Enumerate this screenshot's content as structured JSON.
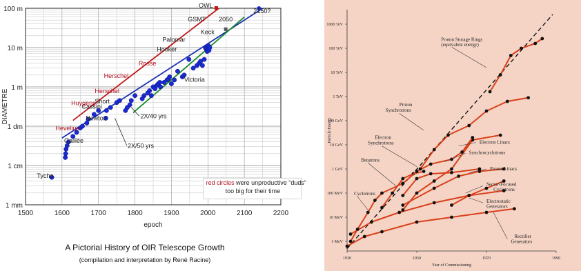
{
  "chart_data": [
    {
      "type": "scatter",
      "title": "",
      "xlabel": "epoch",
      "ylabel": "DIAMETRE",
      "xlim": [
        1500,
        2200
      ],
      "ylim_log_m": [
        0.001,
        100
      ],
      "y_scale": "log",
      "grid": true,
      "x_ticks": [
        "1500",
        "1600",
        "1700",
        "1800",
        "1900",
        "2000",
        "2100",
        "2200"
      ],
      "y_ticks": [
        {
          "v": 100,
          "label": "100 m"
        },
        {
          "v": 10,
          "label": "10 m"
        },
        {
          "v": 1,
          "label": "1 m"
        },
        {
          "v": 0.1,
          "label": "1 dm"
        },
        {
          "v": 0.01,
          "label": "1 cm"
        },
        {
          "v": 0.001,
          "label": "1 mm"
        }
      ],
      "points": [
        {
          "x": 1572,
          "y": 0.005
        },
        {
          "x": 1609,
          "y": 0.016
        },
        {
          "x": 1610,
          "y": 0.02
        },
        {
          "x": 1611,
          "y": 0.026
        },
        {
          "x": 1614,
          "y": 0.032
        },
        {
          "x": 1618,
          "y": 0.04
        },
        {
          "x": 1630,
          "y": 0.055
        },
        {
          "x": 1640,
          "y": 0.07
        },
        {
          "x": 1650,
          "y": 0.09
        },
        {
          "x": 1656,
          "y": 0.1
        },
        {
          "x": 1668,
          "y": 0.12
        },
        {
          "x": 1672,
          "y": 0.15
        },
        {
          "x": 1688,
          "y": 0.2
        },
        {
          "x": 1700,
          "y": 0.25
        },
        {
          "x": 1720,
          "y": 0.16
        },
        {
          "x": 1722,
          "y": 0.25
        },
        {
          "x": 1733,
          "y": 0.3
        },
        {
          "x": 1750,
          "y": 0.4
        },
        {
          "x": 1758,
          "y": 0.45
        },
        {
          "x": 1774,
          "y": 0.25
        },
        {
          "x": 1779,
          "y": 0.3
        },
        {
          "x": 1786,
          "y": 0.35
        },
        {
          "x": 1790,
          "y": 0.45
        },
        {
          "x": 1800,
          "y": 0.6
        },
        {
          "x": 1820,
          "y": 0.5
        },
        {
          "x": 1825,
          "y": 0.6
        },
        {
          "x": 1835,
          "y": 0.7
        },
        {
          "x": 1840,
          "y": 0.8
        },
        {
          "x": 1845,
          "y": 0.6
        },
        {
          "x": 1850,
          "y": 1.0
        },
        {
          "x": 1855,
          "y": 0.9
        },
        {
          "x": 1860,
          "y": 1.1
        },
        {
          "x": 1864,
          "y": 1.2
        },
        {
          "x": 1868,
          "y": 1.3
        },
        {
          "x": 1870,
          "y": 1.0
        },
        {
          "x": 1880,
          "y": 1.3
        },
        {
          "x": 1888,
          "y": 1.5
        },
        {
          "x": 1892,
          "y": 1.6
        },
        {
          "x": 1895,
          "y": 1.8
        },
        {
          "x": 1900,
          "y": 1.2
        },
        {
          "x": 1908,
          "y": 1.5
        },
        {
          "x": 1917,
          "y": 2.5
        },
        {
          "x": 1930,
          "y": 1.8
        },
        {
          "x": 1935,
          "y": 2.0
        },
        {
          "x": 1948,
          "y": 5.0
        },
        {
          "x": 1960,
          "y": 3.0
        },
        {
          "x": 1970,
          "y": 3.5
        },
        {
          "x": 1976,
          "y": 4.0
        },
        {
          "x": 1980,
          "y": 4.5
        },
        {
          "x": 1985,
          "y": 3.5
        },
        {
          "x": 1990,
          "y": 5.0
        },
        {
          "x": 1993,
          "y": 10
        },
        {
          "x": 1996,
          "y": 9
        },
        {
          "x": 1998,
          "y": 8
        },
        {
          "x": 1999,
          "y": 8.2
        },
        {
          "x": 2000,
          "y": 10
        },
        {
          "x": 2001,
          "y": 9.2
        },
        {
          "x": 2002,
          "y": 11
        },
        {
          "x": 2003,
          "y": 8.5
        },
        {
          "x": 2005,
          "y": 10
        }
      ],
      "trend_lines": [
        {
          "label": "2X/50 yrs",
          "color": "#1a2fb0",
          "from": [
            1600,
            0.05
          ],
          "to": [
            2150,
            100
          ]
        },
        {
          "label": "",
          "color": "#c01818",
          "from": [
            1630,
            0.14
          ],
          "to": [
            2030,
            100
          ]
        },
        {
          "label": "2X/40 yrs",
          "color": "#158a28",
          "from": [
            1795,
            0.22
          ],
          "to": [
            2100,
            60
          ]
        }
      ],
      "labels": [
        {
          "text": "Tycho",
          "x": 1531,
          "y": 0.0048,
          "red": false
        },
        {
          "text": "Galilée",
          "x": 1606,
          "y": 0.038,
          "red": false
        },
        {
          "text": "Hevelius",
          "x": 1582,
          "y": 0.078,
          "red": true
        },
        {
          "text": "Newton",
          "x": 1665,
          "y": 0.14,
          "red": false
        },
        {
          "text": "Cassini",
          "x": 1654,
          "y": 0.28,
          "red": false
        },
        {
          "text": "Short",
          "x": 1690,
          "y": 0.38,
          "red": false
        },
        {
          "text": "Huygens",
          "x": 1625,
          "y": 0.34,
          "red": true
        },
        {
          "text": "Herschel",
          "x": 1690,
          "y": 0.7,
          "red": true
        },
        {
          "text": "Herschel",
          "x": 1715,
          "y": 1.7,
          "red": true
        },
        {
          "text": "Rosse",
          "x": 1810,
          "y": 3.5,
          "red": true
        },
        {
          "text": "Hooker",
          "x": 1860,
          "y": 8,
          "red": false
        },
        {
          "text": "Palomar",
          "x": 1875,
          "y": 14,
          "red": false
        },
        {
          "text": "Victoria",
          "x": 1935,
          "y": 1.35,
          "red": false
        },
        {
          "text": "Keck",
          "x": 1980,
          "y": 22,
          "red": false
        },
        {
          "text": "OWL",
          "x": 1975,
          "y": 105,
          "red": false
        },
        {
          "text": "GSMT",
          "x": 1945,
          "y": 46,
          "red": false
        },
        {
          "text": "2050",
          "x": 2030,
          "y": 46,
          "red": false
        },
        {
          "text": "2150?",
          "x": 2125,
          "y": 75,
          "red": false
        }
      ],
      "annotations": [
        {
          "text": "2X/40 yrs",
          "x": 1815,
          "y": 0.16
        },
        {
          "text": "2X/50 yrs",
          "x": 1780,
          "y": 0.028
        }
      ],
      "legend_note": {
        "line1_red": "red circles",
        "line1_rest": " were unproductive \"duds\"",
        "line2": "too big for their time"
      }
    },
    {
      "type": "line",
      "xlabel": "Year of Commissioning",
      "ylabel": "Particle Energy",
      "xlim": [
        1930,
        1990
      ],
      "x_ticks": [
        "1930",
        "1950",
        "1970",
        "1990"
      ],
      "y_scale": "log",
      "y_ticks": [
        "1000 TeV",
        "100 TeV",
        "10 TeV",
        "1 TeV",
        "100 GeV",
        "10 GeV",
        "1 GeV",
        "100 MeV",
        "10 MeV",
        "1 MeV"
      ],
      "y_tick_exponents": [
        9,
        8,
        7,
        6,
        5,
        4,
        3,
        2,
        1,
        0
      ],
      "reference_line": {
        "from": [
          1930,
          -0.3
        ],
        "to": [
          1989,
          9.4
        ]
      },
      "curves": [
        {
          "name": "Rectifier Generators",
          "points": [
            [
              1930,
              -0.2
            ],
            [
              1935,
              0.2
            ],
            [
              1940,
              0.4
            ],
            [
              1950,
              0.8
            ],
            [
              1960,
              1.0
            ],
            [
              1970,
              1.2
            ],
            [
              1978,
              1.35
            ]
          ]
        },
        {
          "name": "Electrostatic Generators",
          "points": [
            [
              1931,
              0.3
            ],
            [
              1937,
              0.8
            ],
            [
              1945,
              1.2
            ],
            [
              1955,
              1.6
            ],
            [
              1965,
              1.9
            ],
            [
              1975,
              2.1
            ]
          ]
        },
        {
          "name": "Cyclotrons",
          "points": [
            [
              1931,
              0.0
            ],
            [
              1933,
              0.5
            ],
            [
              1936,
              1.2
            ],
            [
              1938,
              1.7
            ],
            [
              1940,
              2.0
            ],
            [
              1946,
              2.4
            ]
          ]
        },
        {
          "name": "Betatrons",
          "points": [
            [
              1940,
              1.4
            ],
            [
              1943,
              2.0
            ],
            [
              1946,
              2.6
            ],
            [
              1949,
              2.8
            ],
            [
              1952,
              2.9
            ]
          ]
        },
        {
          "name": "Synchrocyclotrons",
          "points": [
            [
              1946,
              1.9
            ],
            [
              1950,
              2.6
            ],
            [
              1954,
              2.8
            ],
            [
              1960,
              2.85
            ],
            [
              1968,
              3.0
            ]
          ]
        },
        {
          "name": "Sector-Focused Cyclotrons",
          "points": [
            [
              1960,
              1.5
            ],
            [
              1965,
              1.9
            ],
            [
              1970,
              2.2
            ],
            [
              1975,
              2.5
            ]
          ]
        },
        {
          "name": "Proton Linacs",
          "points": [
            [
              1946,
              1.5
            ],
            [
              1955,
              2.2
            ],
            [
              1962,
              2.7
            ],
            [
              1968,
              2.9
            ],
            [
              1975,
              3.0
            ]
          ]
        },
        {
          "name": "Electron Linacs",
          "points": [
            [
              1946,
              1.3
            ],
            [
              1950,
              2.0
            ],
            [
              1955,
              2.5
            ],
            [
              1960,
              3.0
            ],
            [
              1966,
              4.2
            ],
            [
              1974,
              4.4
            ]
          ]
        },
        {
          "name": "Electron Synchrotrons",
          "points": [
            [
              1946,
              2.4
            ],
            [
              1950,
              2.9
            ],
            [
              1954,
              3.2
            ],
            [
              1960,
              3.4
            ],
            [
              1963,
              3.7
            ],
            [
              1966,
              4.3
            ]
          ]
        },
        {
          "name": "Proton Synchrotrons",
          "points": [
            [
              1951,
              3.0
            ],
            [
              1955,
              3.8
            ],
            [
              1959,
              4.4
            ],
            [
              1965,
              4.8
            ],
            [
              1970,
              5.4
            ],
            [
              1976,
              5.8
            ],
            [
              1982,
              5.95
            ]
          ]
        },
        {
          "name": "Proton Storage Rings (equivalent energy)",
          "points": [
            [
              1971,
              6.2
            ],
            [
              1974,
              6.9
            ],
            [
              1977,
              7.7
            ],
            [
              1980,
              8.0
            ],
            [
              1984,
              8.2
            ],
            [
              1986,
              8.4
            ]
          ]
        }
      ],
      "labels": [
        {
          "text": "Proton Storage Rings",
          "x": 1957,
          "y": 8.3
        },
        {
          "text": "(equivalent energy)",
          "x": 1957,
          "y": 8.08
        },
        {
          "text": "Proton",
          "x": 1945,
          "y": 5.6
        },
        {
          "text": "Synchrotrons",
          "x": 1941,
          "y": 5.37
        },
        {
          "text": "Electron",
          "x": 1938,
          "y": 4.25
        },
        {
          "text": "Synchrotrons",
          "x": 1936,
          "y": 4.02
        },
        {
          "text": "Electron Linacs",
          "x": 1968,
          "y": 4.05
        },
        {
          "text": "Synchrocyclotrons",
          "x": 1965,
          "y": 3.62
        },
        {
          "text": "Betatrons",
          "x": 1934,
          "y": 3.3
        },
        {
          "text": "Proton Linacs",
          "x": 1971,
          "y": 2.95
        },
        {
          "text": "Sector-Focused",
          "x": 1970,
          "y": 2.3
        },
        {
          "text": "Cyclotrons",
          "x": 1972,
          "y": 2.08
        },
        {
          "text": "Cyclotrons",
          "x": 1932,
          "y": 1.92
        },
        {
          "text": "Electrostatic",
          "x": 1970,
          "y": 1.6
        },
        {
          "text": "Generators",
          "x": 1970,
          "y": 1.38
        },
        {
          "text": "Rectifier",
          "x": 1978,
          "y": 0.15
        },
        {
          "text": "Generators",
          "x": 1977,
          "y": -0.07
        }
      ]
    }
  ],
  "captions": {
    "title": "A Pictorial History of OIR Telescope Growth",
    "subtitle": "(compilation and interpretation by René Racine)"
  }
}
